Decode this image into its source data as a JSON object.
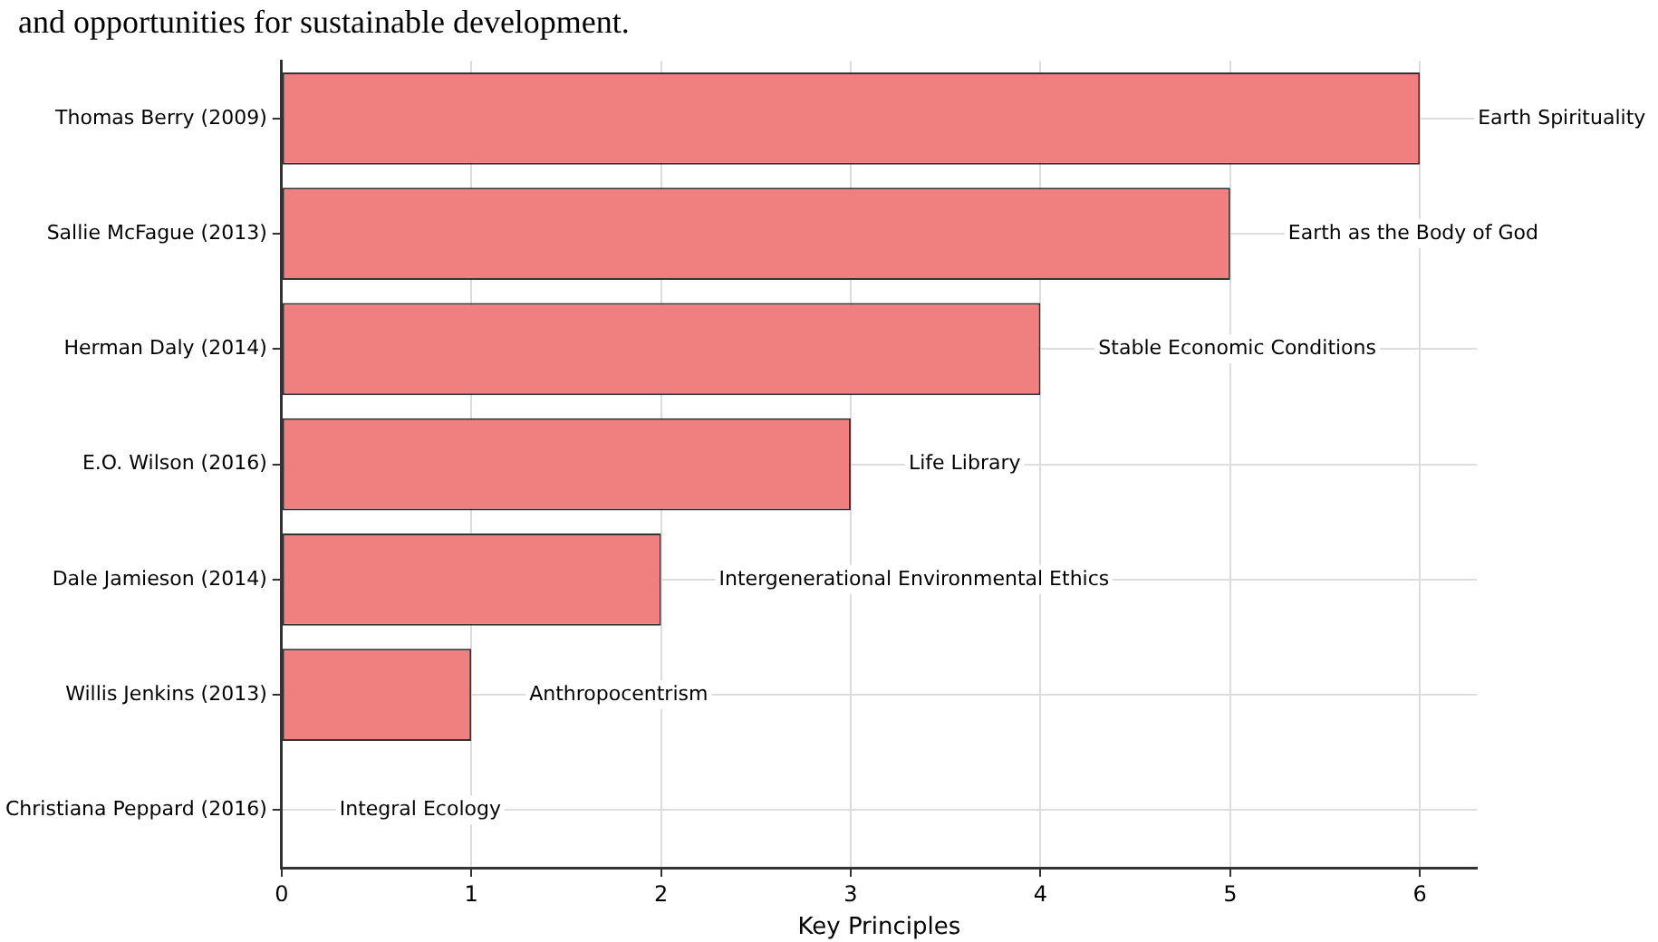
{
  "chart_data": {
    "type": "bar",
    "orientation": "horizontal",
    "xlabel": "Key Principles",
    "categories": [
      "Thomas Berry (2009)",
      "Sallie McFague (2013)",
      "Herman Daly (2014)",
      "E.O. Wilson (2016)",
      "Dale Jamieson (2014)",
      "Willis Jenkins (2013)",
      "Christiana Peppard (2016)"
    ],
    "values": [
      6,
      5,
      4,
      3,
      2,
      1,
      0
    ],
    "color": "#f08080",
    "xlim": [
      0,
      6.3
    ],
    "xticks": [
      0,
      1,
      2,
      3,
      4,
      5,
      6
    ],
    "grid": true,
    "annotations": [
      "and opportunities for sustainable development.",
      {
        "text": "Earth Spirituality",
        "x": 6,
        "y": "Thomas Berry (2009)"
      },
      {
        "text": "Earth as the Body of God",
        "x": 5,
        "y": "Sallie McFague (2013)"
      },
      {
        "text": "Stable Economic Conditions",
        "x": 4,
        "y": "Herman Daly (2014)"
      },
      {
        "text": "Life Library",
        "x": 3,
        "y": "E.O. Wilson (2016)"
      },
      {
        "text": "Intergenerational Environmental Ethics",
        "x": 2,
        "y": "Dale Jamieson (2014)"
      },
      {
        "text": "Anthropocentrism",
        "x": 1,
        "y": "Willis Jenkins (2013)"
      },
      {
        "text": "Integral Ecology",
        "x": 0,
        "y": "Christiana Peppard (2016)"
      }
    ]
  }
}
